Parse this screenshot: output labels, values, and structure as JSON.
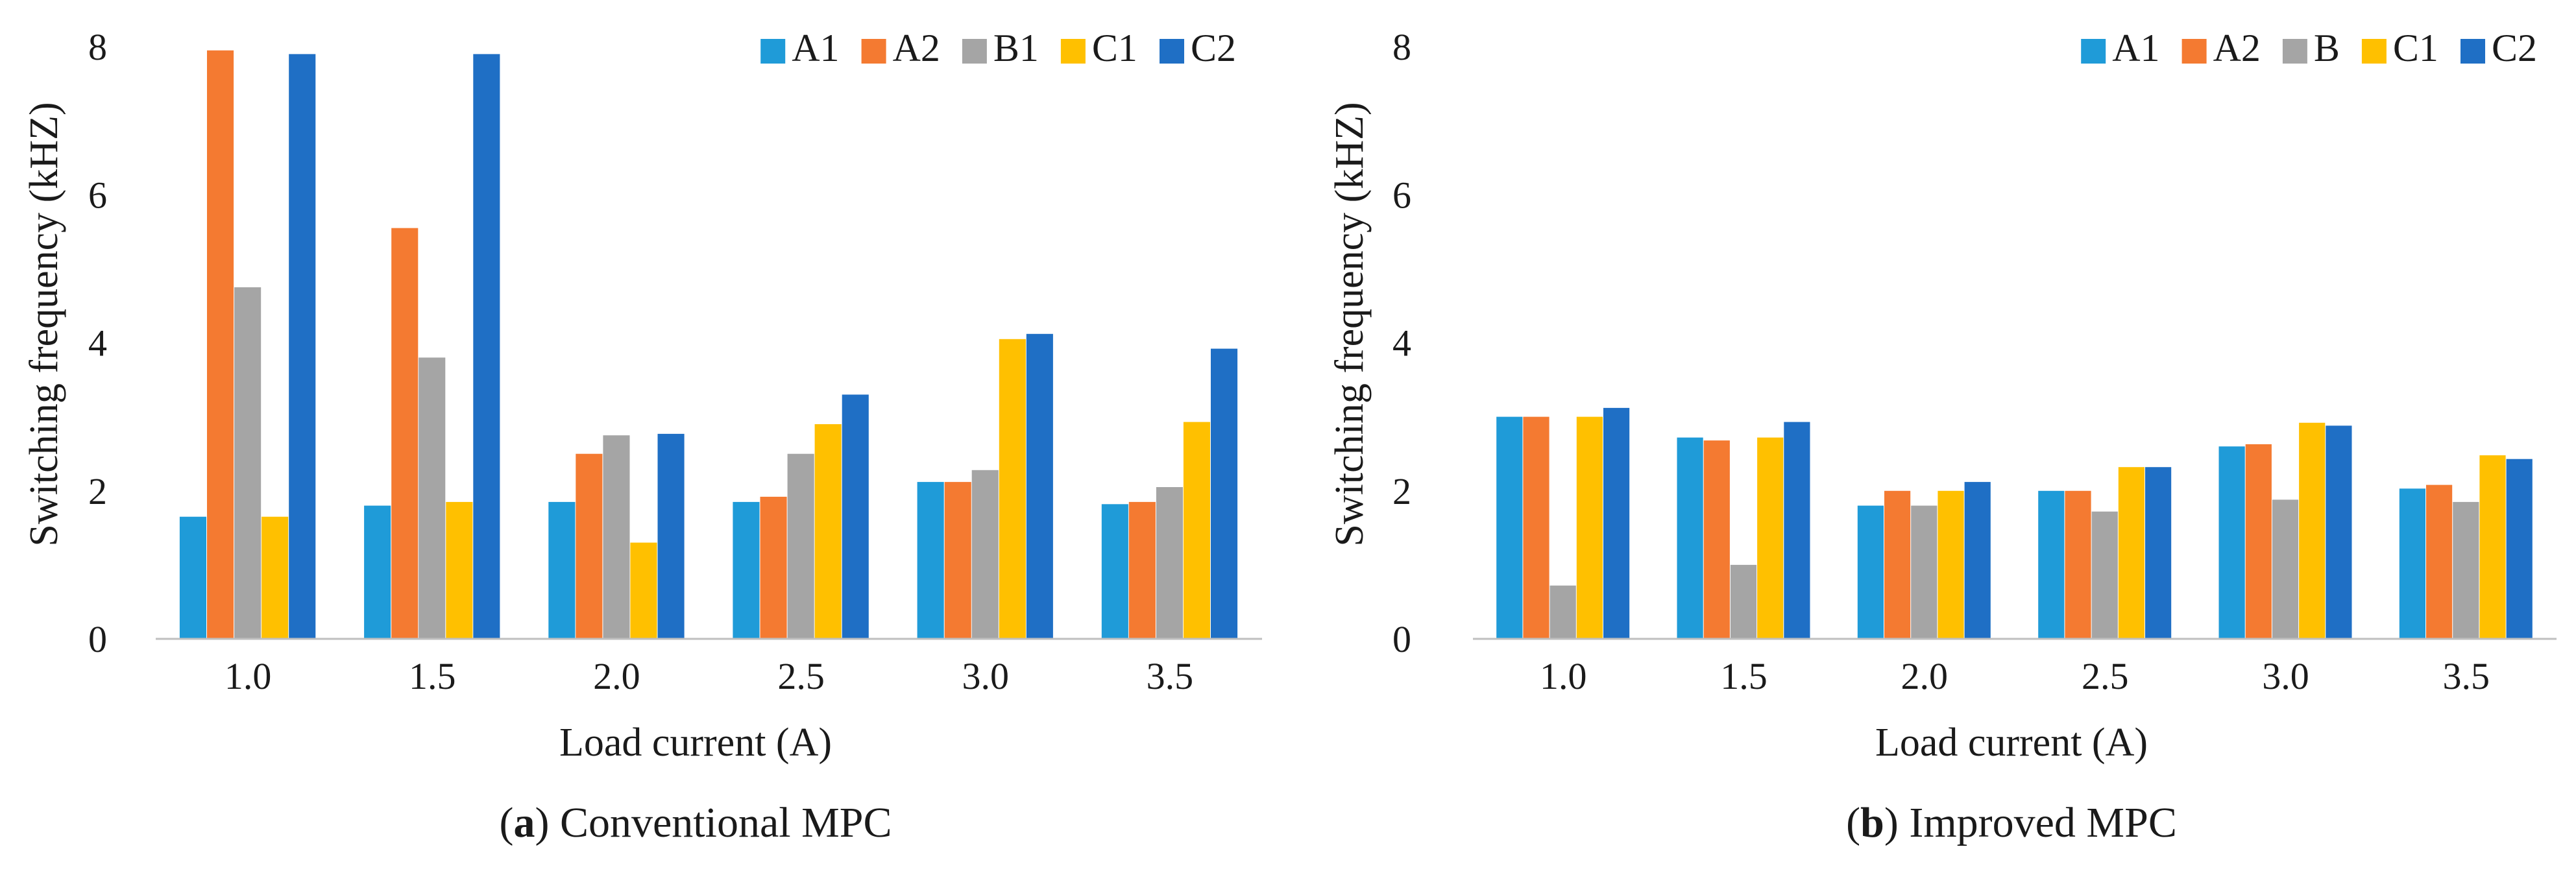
{
  "chart_data": [
    {
      "type": "bar",
      "caption_label": "a",
      "caption_text": "Conventional MPC",
      "categories": [
        "1.0",
        "1.5",
        "2.0",
        "2.5",
        "3.0",
        "3.5"
      ],
      "series": [
        {
          "name": "A1",
          "color": "#1f9bd8",
          "values": [
            1.65,
            1.8,
            1.85,
            1.85,
            2.12,
            1.82
          ]
        },
        {
          "name": "A2",
          "color": "#f47a31",
          "values": [
            7.95,
            5.55,
            2.5,
            1.92,
            2.12,
            1.85
          ]
        },
        {
          "name": "B1",
          "color": "#a5a5a5",
          "values": [
            4.75,
            3.8,
            2.75,
            2.5,
            2.28,
            2.05
          ]
        },
        {
          "name": "C1",
          "color": "#ffc000",
          "values": [
            1.65,
            1.85,
            1.3,
            2.9,
            4.05,
            2.93
          ]
        },
        {
          "name": "C2",
          "color": "#1f6fc5",
          "values": [
            7.9,
            7.9,
            2.77,
            3.3,
            4.12,
            3.92
          ]
        }
      ],
      "xlabel": "Load current (A)",
      "ylabel": "Switching frequency (kHZ)",
      "ylim": [
        0,
        8
      ],
      "yticks": [
        "0",
        "2",
        "4",
        "6",
        "8"
      ],
      "grid": false,
      "legend_position": "top-right"
    },
    {
      "type": "bar",
      "caption_label": "b",
      "caption_text": "Improved MPC",
      "categories": [
        "1.0",
        "1.5",
        "2.0",
        "2.5",
        "3.0",
        "3.5"
      ],
      "series": [
        {
          "name": "A1",
          "color": "#1f9bd8",
          "values": [
            3.0,
            2.72,
            1.8,
            2.0,
            2.6,
            2.03
          ]
        },
        {
          "name": "A2",
          "color": "#f47a31",
          "values": [
            3.0,
            2.68,
            2.0,
            2.0,
            2.63,
            2.08
          ]
        },
        {
          "name": "B",
          "color": "#a5a5a5",
          "values": [
            0.72,
            1.0,
            1.8,
            1.72,
            1.88,
            1.85
          ]
        },
        {
          "name": "C1",
          "color": "#ffc000",
          "values": [
            3.0,
            2.72,
            2.0,
            2.32,
            2.92,
            2.48
          ]
        },
        {
          "name": "C2",
          "color": "#1f6fc5",
          "values": [
            3.12,
            2.93,
            2.12,
            2.32,
            2.88,
            2.43
          ]
        }
      ],
      "xlabel": "Load current (A)",
      "ylabel": "Switching frequency (kHZ)",
      "ylim": [
        0,
        8
      ],
      "yticks": [
        "0",
        "2",
        "4",
        "6",
        "8"
      ],
      "grid": false,
      "legend_position": "top-right"
    }
  ]
}
